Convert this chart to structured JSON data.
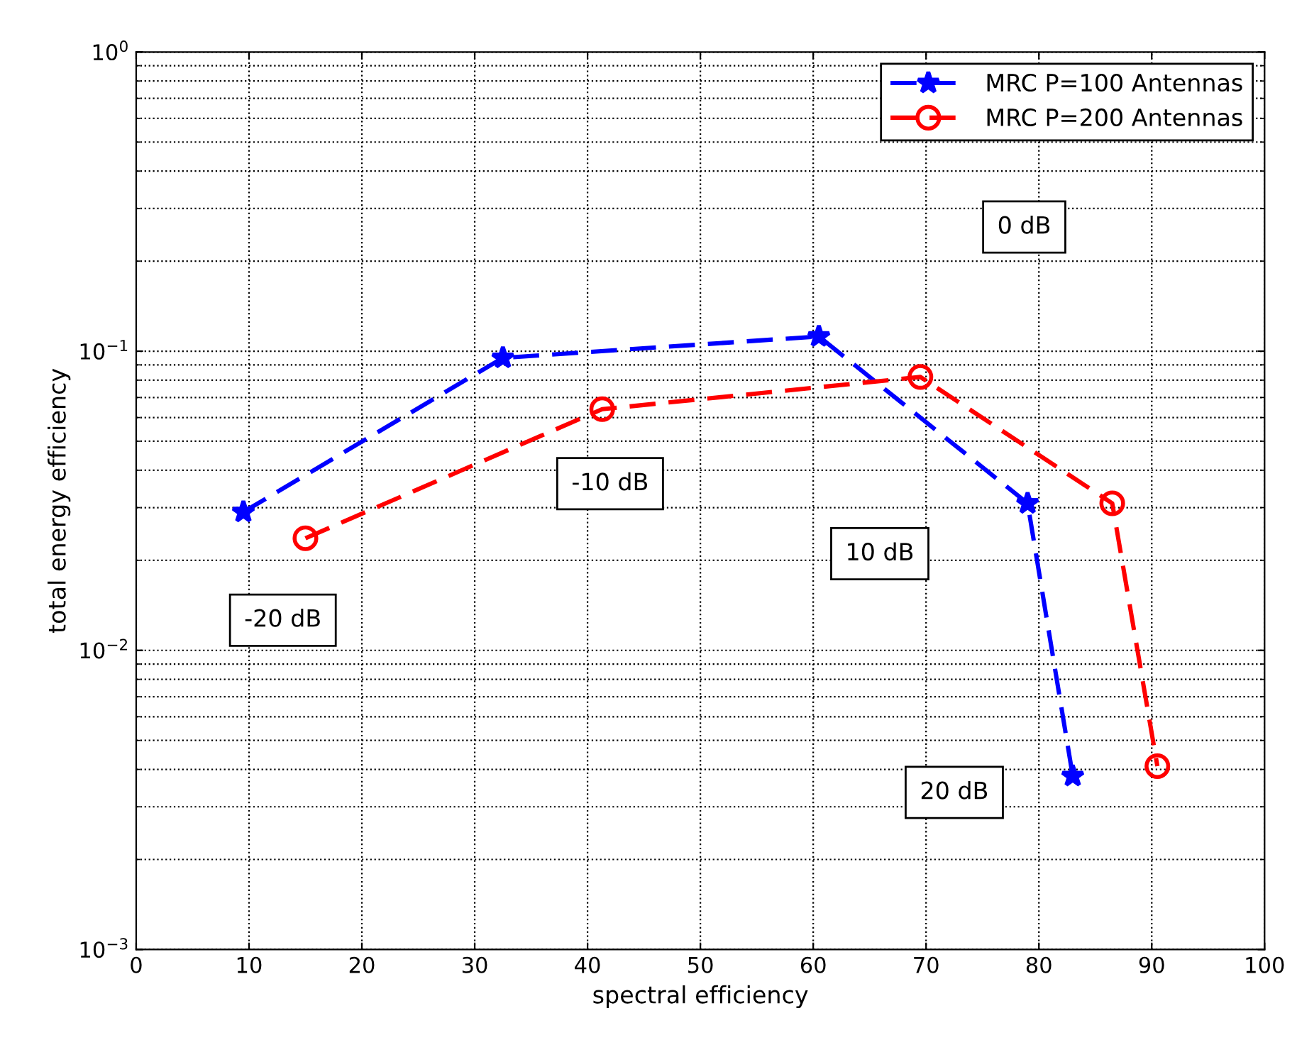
{
  "chart_data": {
    "type": "line",
    "xlabel": "spectral efficiency",
    "ylabel": "total energy efficiency",
    "log": "y",
    "xlim": [
      0,
      100
    ],
    "xticks": [
      0,
      10,
      20,
      30,
      40,
      50,
      60,
      70,
      80,
      90,
      100
    ],
    "ylim": [
      0.001,
      1
    ],
    "yticks": [
      {
        "value": 0.001,
        "label": "10$^{−3}$"
      },
      {
        "value": 0.01,
        "label": "10$^{−2}$"
      },
      {
        "value": 0.1,
        "label": "10$^{−1}$"
      },
      {
        "value": 1,
        "label": "10$^{0}$"
      }
    ],
    "grid": true,
    "legend": "top right",
    "line_style": "dashed",
    "series": [
      {
        "name": "MRC P=100 Antennas",
        "color": "#0000ff",
        "marker": "star",
        "x": [
          9.5,
          32.5,
          60.5,
          79,
          83
        ],
        "values": [
          0.029,
          0.095,
          0.112,
          0.031,
          0.0038
        ]
      },
      {
        "name": "MRC P=200 Antennas",
        "color": "#ff0000",
        "marker": "circle",
        "x": [
          15,
          41.3,
          69.5,
          86.5,
          90.5
        ],
        "values": [
          0.0237,
          0.064,
          0.082,
          0.031,
          0.0041
        ]
      }
    ],
    "annotations": [
      "0 dB",
      "-10 dB",
      "10 dB",
      "-20 dB",
      "20 dB"
    ]
  }
}
